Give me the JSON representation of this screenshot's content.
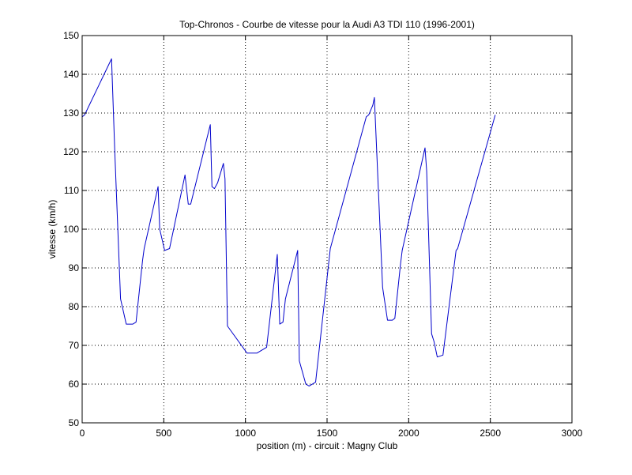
{
  "chart_data": {
    "type": "line",
    "title": "Top-Chronos - Courbe de vitesse pour la Audi A3 TDI 110 (1996-2001)",
    "xlabel": "position (m) - circuit : Magny Club",
    "ylabel": "vitesse (km/h)",
    "xlim": [
      0,
      3000
    ],
    "ylim": [
      50,
      150
    ],
    "xticks": [
      0,
      500,
      1000,
      1500,
      2000,
      2500,
      3000
    ],
    "yticks": [
      50,
      60,
      70,
      80,
      90,
      100,
      110,
      120,
      130,
      140,
      150
    ],
    "xtick_labels": [
      "0",
      "500",
      "1000",
      "1500",
      "2000",
      "2500",
      "3000"
    ],
    "ytick_labels": [
      "50",
      "60",
      "70",
      "80",
      "90",
      "100",
      "110",
      "120",
      "130",
      "140",
      "150"
    ],
    "grid": true,
    "line_color": "#0000cc",
    "series": [
      {
        "x": [
          0,
          15,
          180,
          200,
          235,
          270,
          310,
          330,
          370,
          380,
          465,
          475,
          505,
          535,
          630,
          650,
          665,
          785,
          795,
          810,
          830,
          865,
          875,
          890,
          1010,
          1070,
          1130,
          1195,
          1210,
          1230,
          1245,
          1320,
          1330,
          1370,
          1390,
          1430,
          1520,
          1740,
          1755,
          1780,
          1790,
          1840,
          1870,
          1900,
          1915,
          1950,
          1960,
          2100,
          2110,
          2140,
          2155,
          2175,
          2210,
          2290,
          2300,
          2530
        ],
        "values": [
          129,
          129.5,
          144,
          120,
          82,
          75.5,
          75.5,
          76,
          92,
          95,
          111,
          100,
          94.5,
          95,
          114,
          106.5,
          106.5,
          127,
          111,
          110.5,
          112,
          117,
          113,
          75,
          68,
          68,
          69.5,
          93.5,
          75.5,
          76,
          82,
          94.5,
          66,
          60,
          59.5,
          60.5,
          95,
          129,
          129.5,
          132,
          134,
          85,
          76.5,
          76.5,
          77,
          91,
          94.5,
          121,
          115,
          73,
          71,
          67,
          67.5,
          94.5,
          95,
          129.5
        ]
      }
    ]
  }
}
